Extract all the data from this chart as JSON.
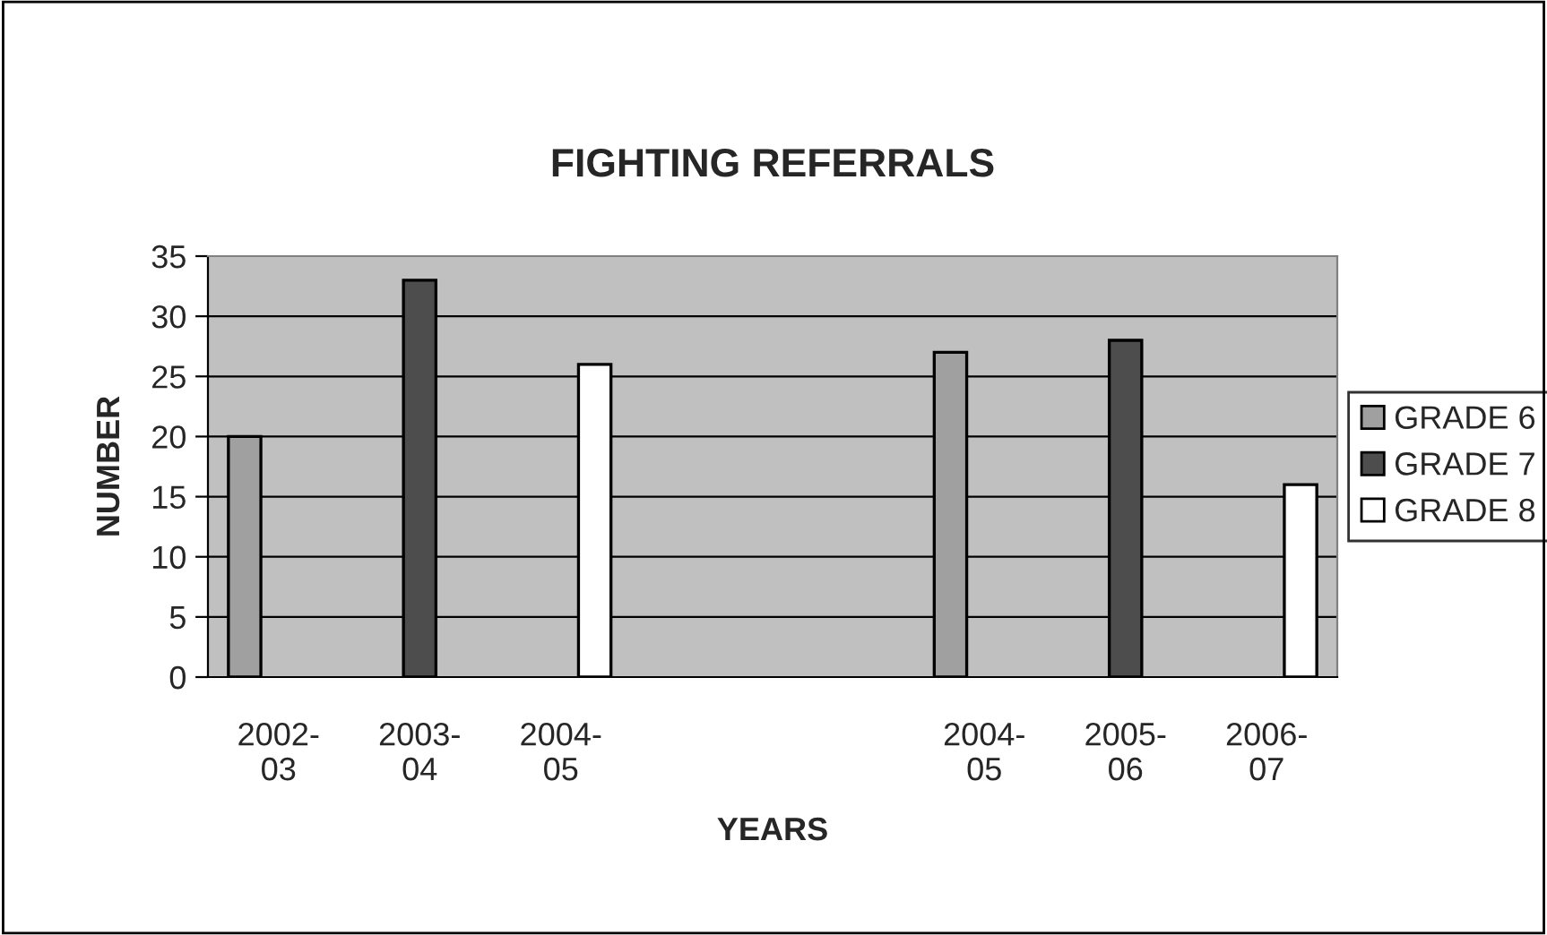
{
  "chart_data": {
    "type": "bar",
    "title": "FIGHTING REFERRALS",
    "xlabel": "YEARS",
    "ylabel": "NUMBER",
    "categories": [
      "2002-\n03",
      "2003-\n04",
      "2004-\n05",
      null,
      null,
      "2004-\n05",
      "2005-\n06",
      "2006-\n07"
    ],
    "series": [
      {
        "name": "GRADE 6",
        "color": "#a0a0a0",
        "values": [
          20,
          null,
          null,
          null,
          null,
          27,
          null,
          null
        ]
      },
      {
        "name": "GRADE 7",
        "color": "#4d4d4d",
        "values": [
          null,
          33,
          null,
          null,
          null,
          null,
          28,
          null
        ]
      },
      {
        "name": "GRADE 8",
        "color": "#ffffff",
        "values": [
          null,
          null,
          26,
          null,
          null,
          null,
          null,
          16
        ]
      }
    ],
    "ylim": [
      0,
      35
    ],
    "yticks": [
      0,
      5,
      10,
      15,
      20,
      25,
      30,
      35
    ],
    "grid": "y",
    "legend": "right"
  }
}
